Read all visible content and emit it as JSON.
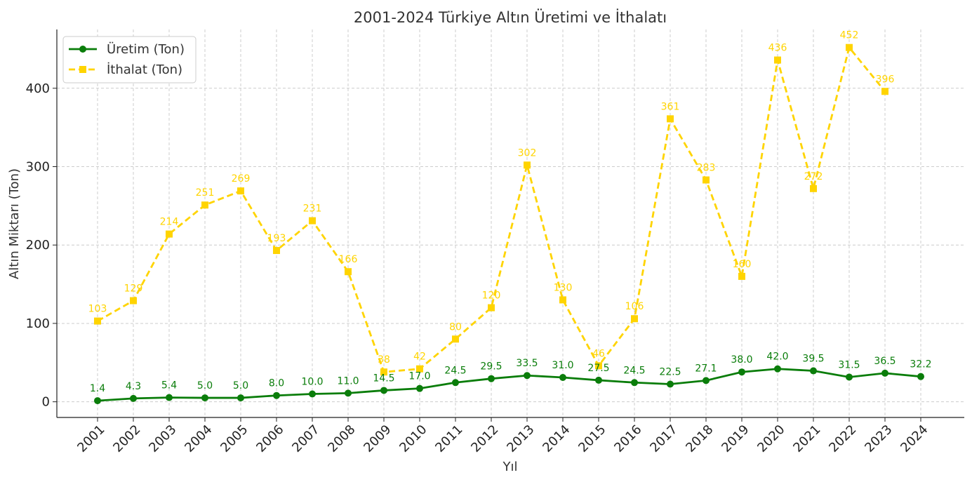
{
  "chart_data": {
    "type": "line",
    "title": "2001-2024 Türkiye Altın Üretimi ve İthalatı",
    "xlabel": "Yıl",
    "ylabel": "Altın Miktarı (Ton)",
    "ylim": [
      -20,
      475
    ],
    "yticks": [
      "0",
      "100",
      "200",
      "300",
      "400"
    ],
    "grid": true,
    "legend_position": "top-left",
    "x": [
      "2001",
      "2002",
      "2003",
      "2004",
      "2005",
      "2006",
      "2007",
      "2008",
      "2009",
      "2010",
      "2011",
      "2012",
      "2013",
      "2014",
      "2015",
      "2016",
      "2017",
      "2018",
      "2019",
      "2020",
      "2021",
      "2022",
      "2023",
      "2024"
    ],
    "series": [
      {
        "name": "Üretim (Ton)",
        "color": "#0a7d0a",
        "style": "solid",
        "marker": "circle",
        "values": [
          1.4,
          4.3,
          5.4,
          5.0,
          5.0,
          8.0,
          10.0,
          11.0,
          14.5,
          17.0,
          24.5,
          29.5,
          33.5,
          31.0,
          27.5,
          24.5,
          22.5,
          27.1,
          38.0,
          42.0,
          39.5,
          31.5,
          36.5,
          32.2
        ],
        "labels": [
          "1.4",
          "4.3",
          "5.4",
          "5.0",
          "5.0",
          "8.0",
          "10.0",
          "11.0",
          "14.5",
          "17.0",
          "24.5",
          "29.5",
          "33.5",
          "31.0",
          "27.5",
          "24.5",
          "22.5",
          "27.1",
          "38.0",
          "42.0",
          "39.5",
          "31.5",
          "36.5",
          "32.2"
        ]
      },
      {
        "name": "İthalat (Ton)",
        "color": "#ffd400",
        "style": "dashed",
        "marker": "square",
        "values": [
          103,
          129,
          214,
          251,
          269,
          193,
          231,
          166,
          38,
          42,
          80,
          120,
          302,
          130,
          46,
          106,
          361,
          283,
          160,
          436,
          272,
          452,
          396,
          null
        ],
        "labels": [
          "103",
          "129",
          "214",
          "251",
          "269",
          "193",
          "231",
          "166",
          "38",
          "42",
          "80",
          "120",
          "302",
          "130",
          "46",
          "106",
          "361",
          "283",
          "160",
          "436",
          "272",
          "452",
          "396",
          ""
        ]
      }
    ]
  }
}
